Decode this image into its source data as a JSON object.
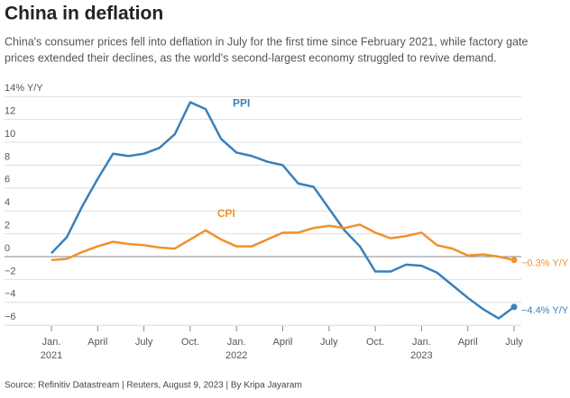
{
  "chart_data": {
    "type": "line",
    "title": "China in deflation",
    "subtitle": [
      "China's consumer prices fell into deflation in July for the first time since February 2021, while factory gate",
      "prices extended their declines, as the world's second-largest economy struggled to revive demand."
    ],
    "source": "Source: Refinitiv Datastream | Reuters, August 9, 2023 | By Kripa Jayaram",
    "x": [
      "2021-01",
      "2021-02",
      "2021-03",
      "2021-04",
      "2021-05",
      "2021-06",
      "2021-07",
      "2021-08",
      "2021-09",
      "2021-10",
      "2021-11",
      "2021-12",
      "2022-01",
      "2022-02",
      "2022-03",
      "2022-04",
      "2022-05",
      "2022-06",
      "2022-07",
      "2022-08",
      "2022-09",
      "2022-10",
      "2022-11",
      "2022-12",
      "2023-01",
      "2023-02",
      "2023-03",
      "2023-04",
      "2023-05",
      "2023-06",
      "2023-07"
    ],
    "xticks": [
      {
        "value": "2021-01",
        "label": "Jan."
      },
      {
        "value": "2021-04",
        "label": "April"
      },
      {
        "value": "2021-07",
        "label": "July"
      },
      {
        "value": "2021-10",
        "label": "Oct."
      },
      {
        "value": "2022-01",
        "label": "Jan."
      },
      {
        "value": "2022-04",
        "label": "April"
      },
      {
        "value": "2022-07",
        "label": "July"
      },
      {
        "value": "2022-10",
        "label": "Oct."
      },
      {
        "value": "2023-01",
        "label": "Jan."
      },
      {
        "value": "2023-04",
        "label": "April"
      },
      {
        "value": "2023-07",
        "label": "July"
      }
    ],
    "year_labels": [
      {
        "value": "2021-01",
        "label": "2021"
      },
      {
        "value": "2022-01",
        "label": "2022"
      },
      {
        "value": "2023-01",
        "label": "2023"
      }
    ],
    "series": [
      {
        "name": "PPI",
        "color": "#3a80ba",
        "end_label": "−4.4% Y/Y",
        "values": [
          0.3,
          1.7,
          4.4,
          6.8,
          9.0,
          8.8,
          9.0,
          9.5,
          10.7,
          13.5,
          12.9,
          10.3,
          9.1,
          8.8,
          8.3,
          8.0,
          6.4,
          6.1,
          4.2,
          2.3,
          0.9,
          -1.3,
          -1.3,
          -0.7,
          -0.8,
          -1.4,
          -2.5,
          -3.6,
          -4.6,
          -5.4,
          -4.4
        ]
      },
      {
        "name": "CPI",
        "color": "#f0912d",
        "end_label": "−0.3% Y/Y",
        "values": [
          -0.3,
          -0.2,
          0.4,
          0.9,
          1.3,
          1.1,
          1.0,
          0.8,
          0.7,
          1.5,
          2.3,
          1.5,
          0.9,
          0.9,
          1.5,
          2.1,
          2.1,
          2.5,
          2.7,
          2.5,
          2.8,
          2.1,
          1.6,
          1.8,
          2.1,
          1.0,
          0.7,
          0.1,
          0.2,
          0.0,
          -0.3
        ]
      }
    ],
    "ylim": [
      -6.4,
      14
    ],
    "yticks": [
      {
        "value": -6,
        "label": "−6"
      },
      {
        "value": -4,
        "label": "−4"
      },
      {
        "value": -2,
        "label": "−2"
      },
      0,
      2,
      4,
      6,
      8,
      10,
      12,
      {
        "value": 14,
        "label": "14% Y/Y"
      }
    ],
    "grid": true
  }
}
